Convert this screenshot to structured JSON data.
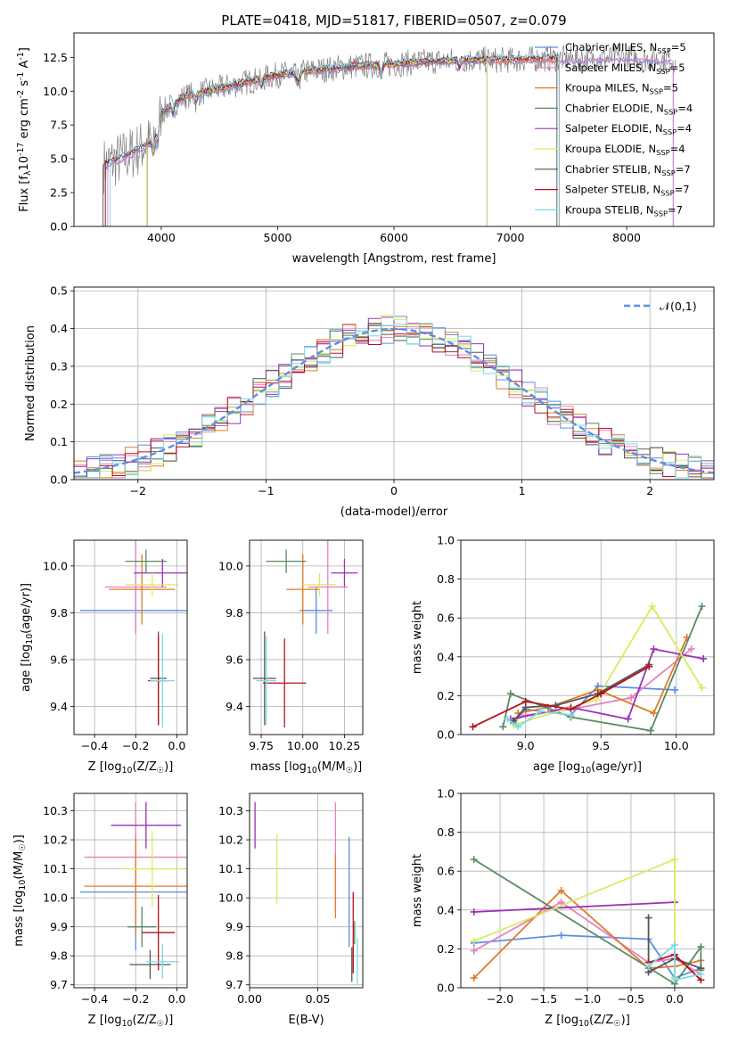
{
  "title": "PLATE=0418, MJD=51817, FIBERID=0507, z=0.079",
  "colors": {
    "chabrier_miles": "#5b8ee6",
    "salpeter_miles": "#e87fbf",
    "kroupa_miles": "#e07b2a",
    "chabrier_elodie": "#5a8a62",
    "salpeter_elodie": "#9b30b8",
    "kroupa_elodie": "#d8ec5a",
    "chabrier_stelib": "#555555",
    "salpeter_stelib": "#b5121b",
    "kroupa_stelib": "#7fd8e8",
    "normal_curve": "#5b8ee6"
  },
  "chart_data": [
    {
      "id": "spectrum",
      "type": "line",
      "title": "PLATE=0418, MJD=51817, FIBERID=0507, z=0.079",
      "xlabel": "wavelength [Angstrom, rest frame]",
      "ylabel": "Flux [f$_\\lambda$10$^{-17}$ erg cm$^{-2}$ s$^{-1}$ A$^{-1}$]",
      "xlim": [
        3250,
        8750
      ],
      "ylim": [
        0,
        14.3
      ],
      "xticks": [
        "4000",
        "5000",
        "6000",
        "7000",
        "8000"
      ],
      "yticks": [
        "0.0",
        "2.5",
        "5.0",
        "7.5",
        "10.0",
        "12.5"
      ],
      "continuum": {
        "x": [
          3500,
          3700,
          3900,
          4000,
          4200,
          4500,
          4800,
          5000,
          5300,
          5600,
          6000,
          6300,
          6600,
          7000,
          7300,
          7600,
          8000,
          8400
        ],
        "y": [
          4.5,
          5.2,
          6.2,
          8.4,
          9.6,
          10.2,
          10.8,
          11.2,
          11.5,
          11.8,
          12.0,
          12.2,
          12.3,
          12.3,
          12.4,
          12.4,
          12.5,
          12.3
        ]
      },
      "legend": [
        "Chabrier MILES, N$_{SSP}$=5",
        "Salpeter MILES, N$_{SSP}$=5",
        "Kroupa MILES, N$_{SSP}$=5",
        "Chabrier ELODIE, N$_{SSP}$=4",
        "Salpeter ELODIE, N$_{SSP}$=4",
        "Kroupa ELODIE, N$_{SSP}$=4",
        "Chabrier STELIB, N$_{SSP}$=7",
        "Salpeter STELIB, N$_{SSP}$=7",
        "Kroupa STELIB, N$_{SSP}$=7"
      ]
    },
    {
      "id": "residual_hist",
      "type": "line",
      "xlabel": "(data-model)/error",
      "ylabel": "Normed distribution",
      "xlim": [
        -2.5,
        2.5
      ],
      "ylim": [
        0,
        0.51
      ],
      "xticks": [
        "−2",
        "−1",
        "0",
        "1",
        "2"
      ],
      "yticks": [
        "0.0",
        "0.1",
        "0.2",
        "0.3",
        "0.4",
        "0.5"
      ],
      "legend": [
        "$\\mathcal{N}(0,1)$"
      ],
      "bin_width": 0.1,
      "bins_start": -2.5,
      "base_curve": "gaussian"
    },
    {
      "id": "age_vs_Z",
      "type": "scatter",
      "xlabel": "Z [log$_{10}$(Z/Z$_\\odot$)]",
      "ylabel": "age  [log$_{10}$(age/yr)]",
      "xlim": [
        -0.5,
        0.05
      ],
      "ylim": [
        9.28,
        10.11
      ],
      "xticks": [
        "−0.4",
        "−0.2",
        "0.0"
      ],
      "yticks": [
        "9.4",
        "9.6",
        "9.8",
        "10.0"
      ],
      "points": [
        {
          "x": -0.2,
          "xerr": 0.27,
          "y": 9.81,
          "yerr": 0.1,
          "color": "chabrier_miles"
        },
        {
          "x": -0.2,
          "xerr": 0.15,
          "y": 9.91,
          "yerr": 0.2,
          "color": "salpeter_miles"
        },
        {
          "x": -0.17,
          "xerr": 0.16,
          "y": 9.9,
          "yerr": 0.15,
          "color": "kroupa_miles"
        },
        {
          "x": -0.15,
          "xerr": 0.1,
          "y": 10.02,
          "yerr": 0.05,
          "color": "chabrier_elodie"
        },
        {
          "x": -0.07,
          "xerr": 0.14,
          "y": 9.97,
          "yerr": 0.06,
          "color": "salpeter_elodie"
        },
        {
          "x": -0.12,
          "xerr": 0.13,
          "y": 9.92,
          "yerr": 0.05,
          "color": "kroupa_elodie"
        },
        {
          "x": -0.09,
          "xerr": 0.04,
          "y": 9.52,
          "yerr": 0.2,
          "color": "chabrier_stelib"
        },
        {
          "x": -0.09,
          "xerr": 0.05,
          "y": 9.51,
          "yerr": 0.19,
          "color": "salpeter_stelib"
        },
        {
          "x": -0.07,
          "xerr": 0.06,
          "y": 9.51,
          "yerr": 0.2,
          "color": "kroupa_stelib"
        }
      ]
    },
    {
      "id": "age_vs_mass",
      "type": "scatter",
      "xlabel": "mass [log$_{10}$(M/M$_\\odot$)]",
      "ylabel": "",
      "xlim": [
        9.68,
        10.36
      ],
      "ylim": [
        9.28,
        10.11
      ],
      "xticks": [
        "9.75",
        "10.00",
        "10.25"
      ],
      "yticks": [
        "9.4",
        "9.6",
        "9.8",
        "10.0"
      ],
      "points": [
        {
          "x": 10.08,
          "xerr": 0.1,
          "y": 9.81,
          "yerr": 0.1,
          "color": "chabrier_miles"
        },
        {
          "x": 10.15,
          "xerr": 0.12,
          "y": 9.91,
          "yerr": 0.2,
          "color": "salpeter_miles"
        },
        {
          "x": 10.0,
          "xerr": 0.1,
          "y": 9.9,
          "yerr": 0.15,
          "color": "kroupa_miles"
        },
        {
          "x": 9.9,
          "xerr": 0.12,
          "y": 10.02,
          "yerr": 0.05,
          "color": "chabrier_elodie"
        },
        {
          "x": 10.25,
          "xerr": 0.08,
          "y": 9.97,
          "yerr": 0.06,
          "color": "salpeter_elodie"
        },
        {
          "x": 10.1,
          "xerr": 0.1,
          "y": 9.92,
          "yerr": 0.05,
          "color": "kroupa_elodie"
        },
        {
          "x": 9.77,
          "xerr": 0.07,
          "y": 9.52,
          "yerr": 0.2,
          "color": "chabrier_stelib"
        },
        {
          "x": 9.89,
          "xerr": 0.13,
          "y": 9.5,
          "yerr": 0.19,
          "color": "salpeter_stelib"
        },
        {
          "x": 9.78,
          "xerr": 0.06,
          "y": 9.51,
          "yerr": 0.19,
          "color": "kroupa_stelib"
        }
      ]
    },
    {
      "id": "weight_vs_age",
      "type": "line",
      "xlabel": "age  [log$_{10}$(age/yr)]",
      "ylabel": "mass weight",
      "xlim": [
        8.57,
        10.25
      ],
      "ylim": [
        0,
        1
      ],
      "xticks": [
        "9.0",
        "9.5",
        "10.0"
      ],
      "yticks": [
        "0.0",
        "0.2",
        "0.4",
        "0.6",
        "0.8",
        "1.0"
      ],
      "series": [
        {
          "color": "chabrier_miles",
          "x": [
            8.92,
            9.0,
            9.3,
            9.48,
            9.99
          ],
          "y": [
            0.06,
            0.13,
            0.1,
            0.25,
            0.23
          ]
        },
        {
          "color": "salpeter_miles",
          "x": [
            8.92,
            9.0,
            9.3,
            9.7,
            10.1
          ],
          "y": [
            0.07,
            0.1,
            0.13,
            0.19,
            0.44
          ]
        },
        {
          "color": "kroupa_miles",
          "x": [
            8.95,
            9.15,
            9.48,
            9.85,
            10.07
          ],
          "y": [
            0.11,
            0.14,
            0.23,
            0.11,
            0.5
          ]
        },
        {
          "color": "chabrier_elodie",
          "x": [
            8.85,
            8.9,
            9.3,
            9.83,
            10.17
          ],
          "y": [
            0.04,
            0.21,
            0.09,
            0.02,
            0.66
          ]
        },
        {
          "color": "salpeter_elodie",
          "x": [
            8.9,
            9.3,
            9.68,
            9.85,
            10.18
          ],
          "y": [
            0.08,
            0.14,
            0.08,
            0.44,
            0.39
          ]
        },
        {
          "color": "kroupa_elodie",
          "x": [
            8.92,
            9.47,
            9.84,
            10.17
          ],
          "y": [
            0.05,
            0.18,
            0.66,
            0.24
          ]
        },
        {
          "color": "chabrier_stelib",
          "x": [
            8.92,
            9.0,
            9.2,
            9.48,
            9.82
          ],
          "y": [
            0.07,
            0.14,
            0.15,
            0.21,
            0.36
          ]
        },
        {
          "color": "salpeter_stelib",
          "x": [
            8.65,
            9.0,
            9.3,
            9.5,
            9.82
          ],
          "y": [
            0.04,
            0.17,
            0.13,
            0.21,
            0.35
          ]
        },
        {
          "color": "kroupa_stelib",
          "x": [
            8.88,
            8.95,
            9.1,
            9.3
          ],
          "y": [
            0.08,
            0.04,
            0.12,
            0.1
          ]
        }
      ]
    },
    {
      "id": "mass_vs_Z",
      "type": "scatter",
      "xlabel": "Z [log$_{10}$(Z/Z$_\\odot$)]",
      "ylabel": "mass [log$_{10}$(M/M$_\\odot$)]",
      "xlim": [
        -0.5,
        0.05
      ],
      "ylim": [
        9.69,
        10.36
      ],
      "xticks": [
        "−0.4",
        "−0.2",
        "0.0"
      ],
      "yticks": [
        "9.7",
        "9.8",
        "9.9",
        "10.0",
        "10.1",
        "10.2",
        "10.3"
      ],
      "points": [
        {
          "x": -0.2,
          "xerr": 0.27,
          "y": 10.02,
          "yerr": 0.2,
          "color": "chabrier_miles"
        },
        {
          "x": -0.2,
          "xerr": 0.25,
          "y": 10.14,
          "yerr": 0.19,
          "color": "salpeter_miles"
        },
        {
          "x": -0.2,
          "xerr": 0.25,
          "y": 10.04,
          "yerr": 0.17,
          "color": "kroupa_miles"
        },
        {
          "x": -0.17,
          "xerr": 0.07,
          "y": 9.9,
          "yerr": 0.07,
          "color": "chabrier_elodie"
        },
        {
          "x": -0.15,
          "xerr": 0.17,
          "y": 10.25,
          "yerr": 0.08,
          "color": "salpeter_elodie"
        },
        {
          "x": -0.12,
          "xerr": 0.15,
          "y": 10.1,
          "yerr": 0.13,
          "color": "kroupa_elodie"
        },
        {
          "x": -0.13,
          "xerr": 0.1,
          "y": 9.77,
          "yerr": 0.05,
          "color": "chabrier_stelib"
        },
        {
          "x": -0.09,
          "xerr": 0.08,
          "y": 9.88,
          "yerr": 0.13,
          "color": "salpeter_stelib"
        },
        {
          "x": -0.07,
          "xerr": 0.08,
          "y": 9.78,
          "yerr": 0.06,
          "color": "kroupa_stelib"
        }
      ]
    },
    {
      "id": "mass_vs_ebv",
      "type": "scatter",
      "xlabel": "E(B-V)",
      "ylabel": "",
      "xlim": [
        0,
        0.083
      ],
      "ylim": [
        9.69,
        10.36
      ],
      "xticks": [
        "0.00",
        "0.05"
      ],
      "yticks": [
        "9.7",
        "9.8",
        "9.9",
        "10.0",
        "10.1",
        "10.2",
        "10.3"
      ],
      "points": [
        {
          "x": 0.073,
          "xerr": 0,
          "y": 10.02,
          "yerr": 0.19,
          "color": "chabrier_miles"
        },
        {
          "x": 0.063,
          "xerr": 0,
          "y": 10.14,
          "yerr": 0.19,
          "color": "salpeter_miles"
        },
        {
          "x": 0.063,
          "xerr": 0,
          "y": 10.04,
          "yerr": 0.11,
          "color": "kroupa_miles"
        },
        {
          "x": 0.077,
          "xerr": 0,
          "y": 9.88,
          "yerr": 0.04,
          "color": "chabrier_elodie"
        },
        {
          "x": 0.004,
          "xerr": 0,
          "y": 10.25,
          "yerr": 0.08,
          "color": "salpeter_elodie"
        },
        {
          "x": 0.02,
          "xerr": 0,
          "y": 10.1,
          "yerr": 0.12,
          "color": "kroupa_elodie"
        },
        {
          "x": 0.075,
          "xerr": 0,
          "y": 9.77,
          "yerr": 0.06,
          "color": "chabrier_stelib"
        },
        {
          "x": 0.076,
          "xerr": 0,
          "y": 9.88,
          "yerr": 0.14,
          "color": "salpeter_stelib"
        },
        {
          "x": 0.079,
          "xerr": 0,
          "y": 9.78,
          "yerr": 0.08,
          "color": "kroupa_stelib"
        }
      ]
    },
    {
      "id": "weight_vs_Z",
      "type": "line",
      "xlabel": "Z [log$_{10}$(Z/Z$_\\odot$)]",
      "ylabel": "mass weight",
      "xlim": [
        -2.45,
        0.45
      ],
      "ylim": [
        0,
        1
      ],
      "xticks": [
        "−2.0",
        "−1.5",
        "−1.0",
        "−0.5",
        "0.0"
      ],
      "yticks": [
        "0.0",
        "0.2",
        "0.4",
        "0.6",
        "0.8",
        "1.0"
      ],
      "series": [
        {
          "color": "chabrier_miles",
          "x": [
            -2.3,
            -1.3,
            -0.3,
            0.0,
            0.3
          ],
          "y": [
            0.23,
            0.27,
            0.25,
            0.05,
            0.1
          ]
        },
        {
          "color": "salpeter_miles",
          "x": [
            -2.3,
            -1.3,
            -0.3,
            0.0,
            0.3
          ],
          "y": [
            0.19,
            0.44,
            0.13,
            0.15,
            0.07
          ]
        },
        {
          "color": "kroupa_miles",
          "x": [
            -2.3,
            -1.3,
            -0.3,
            0.0,
            0.3
          ],
          "y": [
            0.05,
            0.5,
            0.1,
            0.11,
            0.14
          ]
        },
        {
          "color": "chabrier_elodie",
          "x": [
            -2.3,
            0.0,
            0.3,
            0.3
          ],
          "y": [
            0.66,
            0.02,
            0.21,
            0.09
          ]
        },
        {
          "color": "salpeter_elodie",
          "x": [
            -2.3,
            0.0
          ],
          "y": [
            0.39,
            0.44
          ]
        },
        {
          "color": "kroupa_elodie",
          "x": [
            -2.3,
            0.0,
            0.0
          ],
          "y": [
            0.24,
            0.66,
            0.05
          ]
        },
        {
          "color": "chabrier_stelib",
          "x": [
            -0.3,
            -0.3,
            0.0,
            0.3
          ],
          "y": [
            0.36,
            0.08,
            0.15,
            0.1
          ]
        },
        {
          "color": "salpeter_stelib",
          "x": [
            -0.3,
            0.0,
            0.3
          ],
          "y": [
            0.13,
            0.17,
            0.04
          ]
        },
        {
          "color": "kroupa_stelib",
          "x": [
            -0.3,
            0.0,
            0.0,
            0.3
          ],
          "y": [
            0.11,
            0.22,
            0.04,
            0.07
          ]
        }
      ]
    }
  ]
}
